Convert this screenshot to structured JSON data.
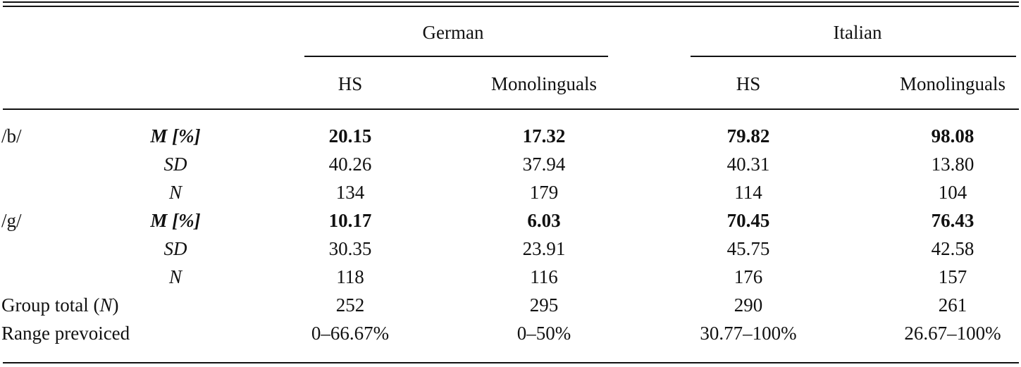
{
  "table": {
    "groups": [
      {
        "label": "German",
        "columns": [
          "HS",
          "Monolinguals"
        ]
      },
      {
        "label": "Italian",
        "columns": [
          "HS",
          "Monolinguals"
        ]
      }
    ],
    "rows": [
      {
        "segment": "/b/",
        "stat": "M [%]",
        "stat_style": "bold-italic",
        "values": [
          "20.15",
          "17.32",
          "79.82",
          "98.08"
        ],
        "bold": true
      },
      {
        "segment": "",
        "stat": "SD",
        "stat_style": "italic",
        "values": [
          "40.26",
          "37.94",
          "40.31",
          "13.80"
        ],
        "bold": false
      },
      {
        "segment": "",
        "stat": "N",
        "stat_style": "italic",
        "values": [
          "134",
          "179",
          "114",
          "104"
        ],
        "bold": false
      },
      {
        "segment": "/g/",
        "stat": "M [%]",
        "stat_style": "bold-italic",
        "values": [
          "10.17",
          "6.03",
          "70.45",
          "76.43"
        ],
        "bold": true
      },
      {
        "segment": "",
        "stat": "SD",
        "stat_style": "italic",
        "values": [
          "30.35",
          "23.91",
          "45.75",
          "42.58"
        ],
        "bold": false
      },
      {
        "segment": "",
        "stat": "N",
        "stat_style": "italic",
        "values": [
          "118",
          "116",
          "176",
          "157"
        ],
        "bold": false
      }
    ],
    "summary": [
      {
        "label_prefix": "Group total (",
        "label_italic": "N",
        "label_suffix": ")",
        "values": [
          "252",
          "295",
          "290",
          "261"
        ]
      },
      {
        "label_prefix": "Range prevoiced",
        "label_italic": "",
        "label_suffix": "",
        "values": [
          "0–66.67%",
          "0–50%",
          "30.77–100%",
          "26.67–100%"
        ]
      }
    ]
  }
}
